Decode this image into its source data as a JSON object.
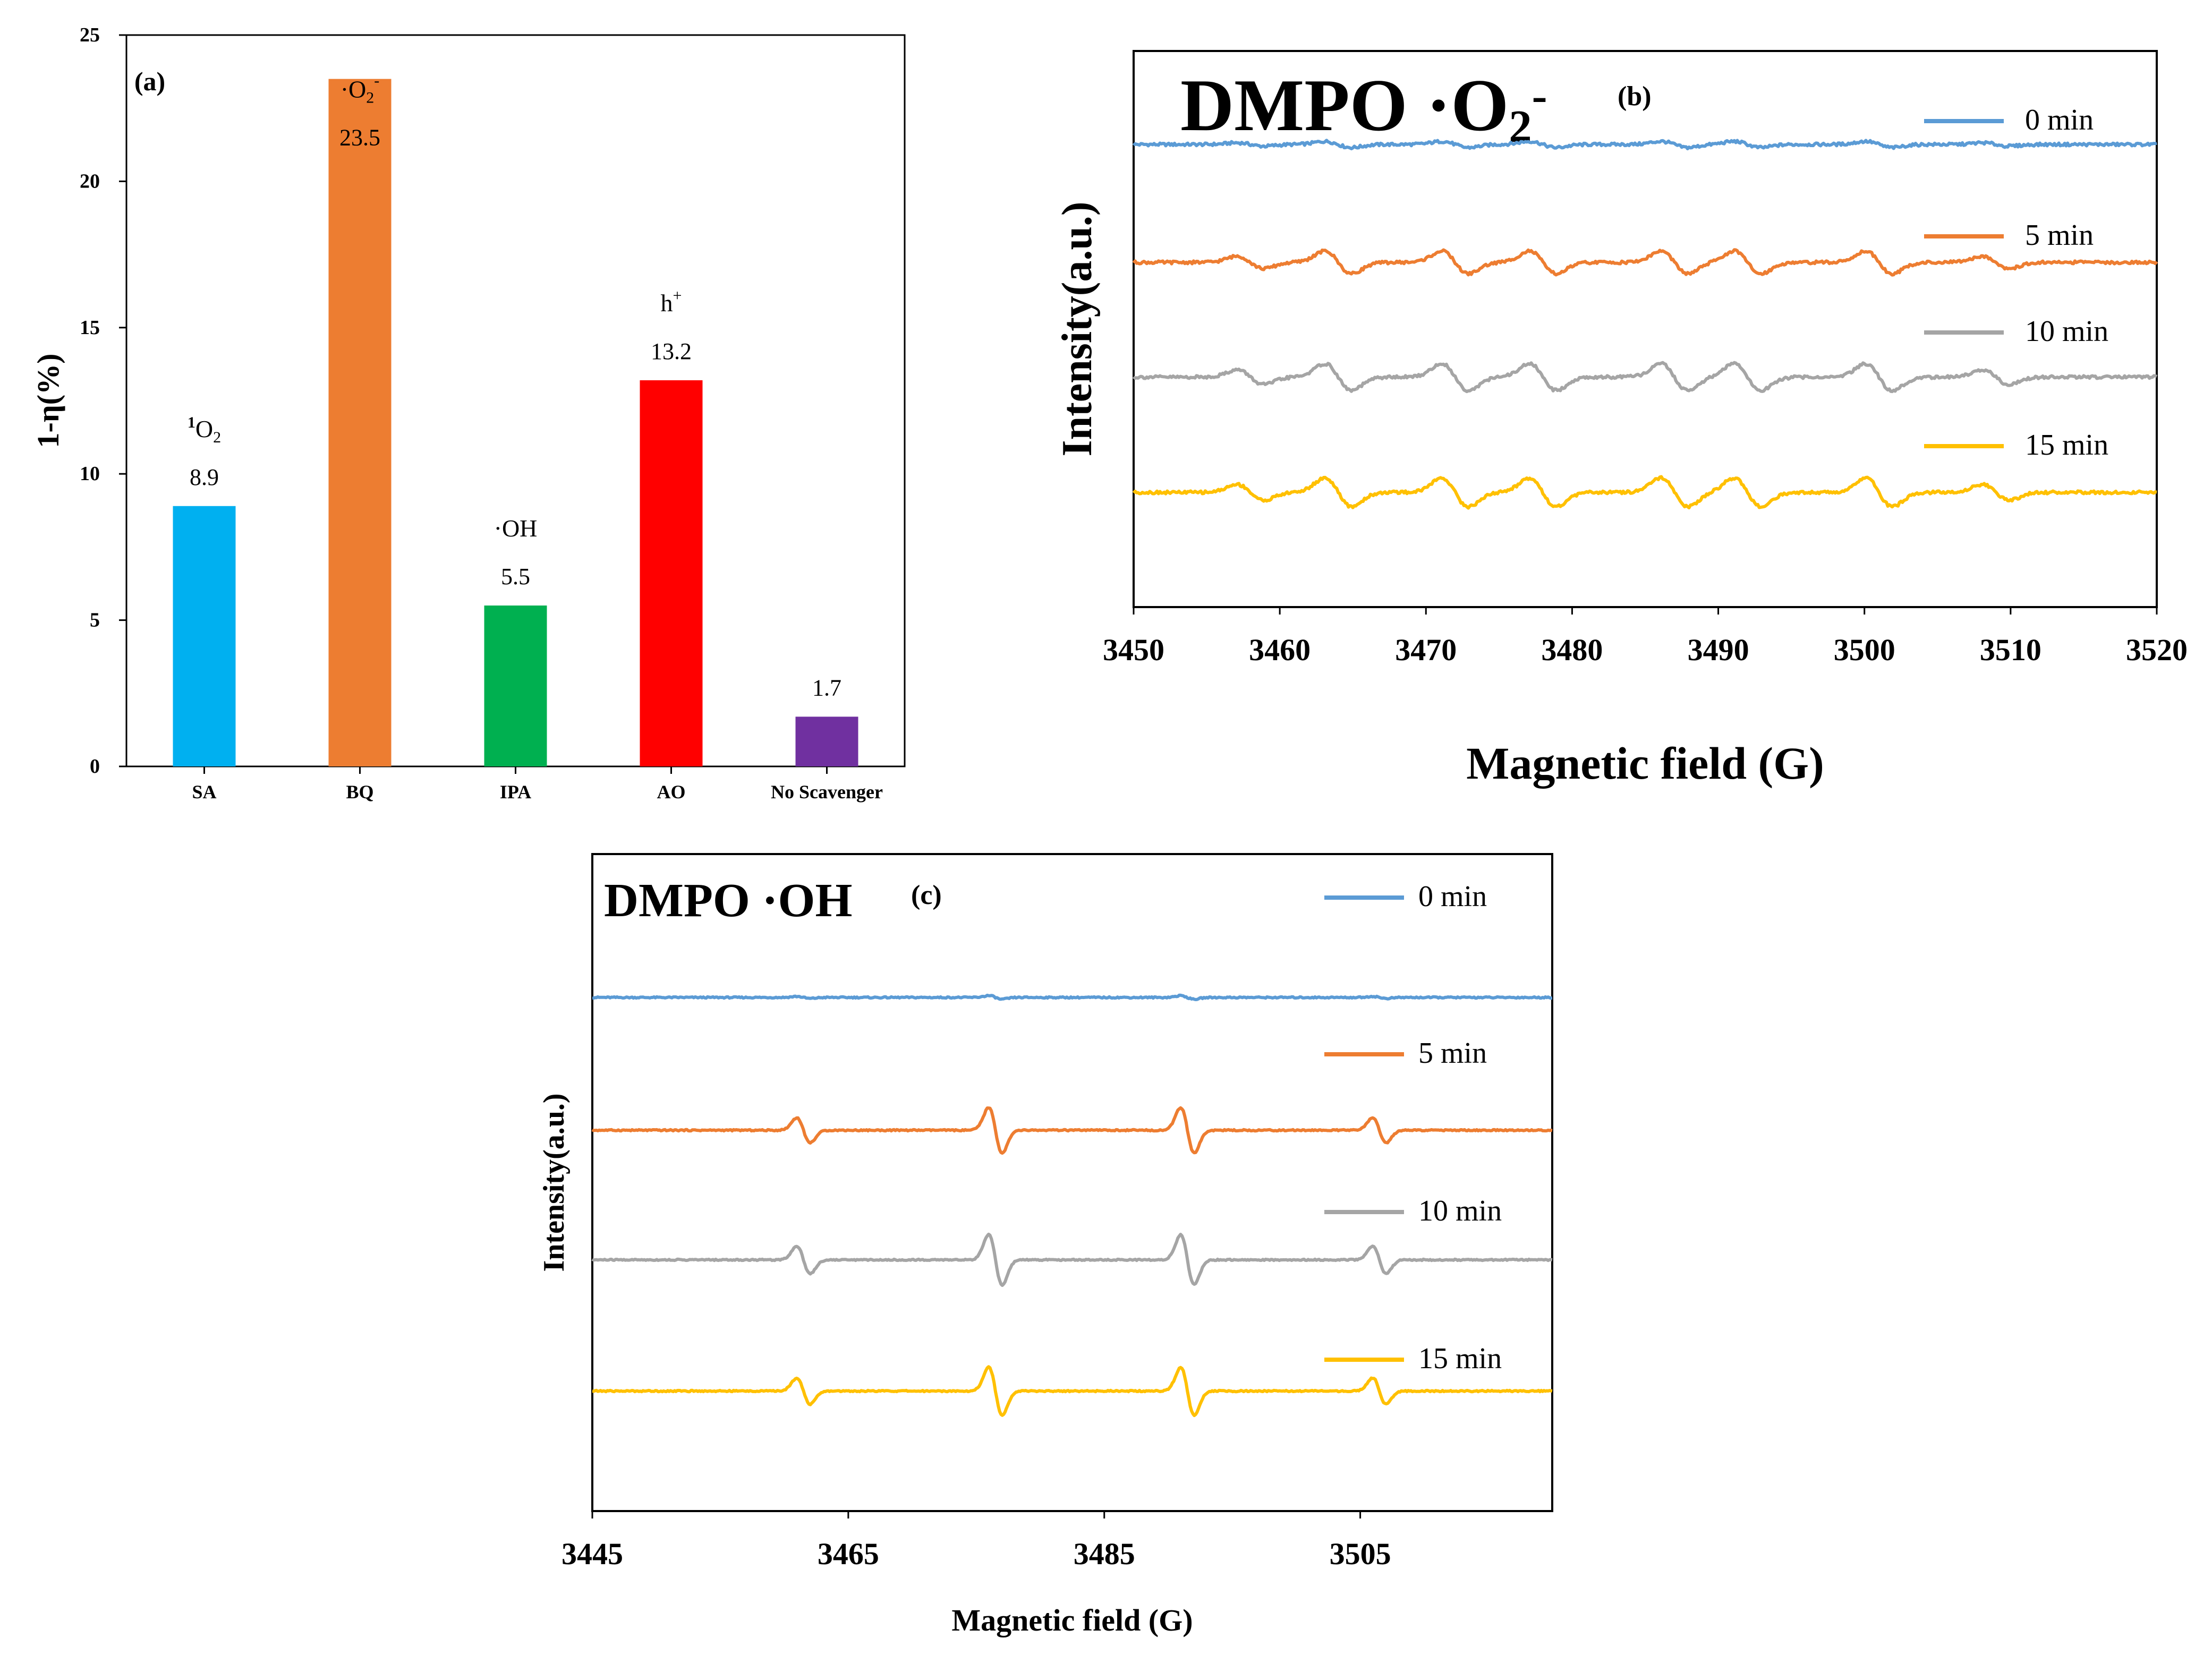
{
  "chart_data": [
    {
      "panel": "(a)",
      "type": "bar",
      "ylabel": "1-η(%)",
      "ylim": [
        0,
        25
      ],
      "yticks": [
        0,
        5,
        10,
        15,
        20,
        25
      ],
      "categories": [
        "SA",
        "BQ",
        "IPA",
        "AO",
        "No Scavenger"
      ],
      "values": [
        8.9,
        23.5,
        5.5,
        13.2,
        1.7
      ],
      "value_labels": [
        "8.9",
        "23.5",
        "5.5",
        "13.2",
        "1.7"
      ],
      "species_labels": [
        {
          "main": "O",
          "pre": "1",
          "sub": "2",
          "sup": ""
        },
        {
          "main": "O",
          "pre": "·",
          "sub": "2",
          "sup": "-"
        },
        {
          "main": "OH",
          "pre": "·",
          "sub": "",
          "sup": ""
        },
        {
          "main": "h",
          "pre": "",
          "sub": "",
          "sup": "+"
        },
        {
          "main": "",
          "pre": "",
          "sub": "",
          "sup": ""
        }
      ],
      "colors": [
        "#00b0f0",
        "#ed7d31",
        "#00b050",
        "#ff0000",
        "#7030a0"
      ],
      "grid": false
    },
    {
      "panel": "(b)",
      "type": "line",
      "title_main": "DMPO ·O",
      "title_sub": "2",
      "title_sup": "-",
      "xlabel": "Magnetic field (G)",
      "ylabel": "Intensity(a.u.)",
      "xlim": [
        3450,
        3520
      ],
      "xticks": [
        3450,
        3460,
        3470,
        3480,
        3490,
        3500,
        3510,
        3520
      ],
      "legend_position": "top-right",
      "series": [
        {
          "name": "0 min",
          "color": "#5b9bd5",
          "amplitude": 0.15
        },
        {
          "name": "5 min",
          "color": "#ed7d31",
          "amplitude": 0.55
        },
        {
          "name": "10 min",
          "color": "#a5a5a5",
          "amplitude": 0.65
        },
        {
          "name": "15 min",
          "color": "#ffc000",
          "amplitude": 0.7
        }
      ],
      "peak_positions": [
        3458,
        3464,
        3472,
        3478,
        3487,
        3492,
        3501,
        3509
      ]
    },
    {
      "panel": "(c)",
      "type": "line",
      "title_main": "DMPO ·OH",
      "xlabel": "Magnetic field (G)",
      "ylabel": "Intensity(a.u.)",
      "xlim": [
        3445,
        3520
      ],
      "xticks": [
        3445,
        3465,
        3485,
        3505
      ],
      "legend_position": "top-right",
      "series": [
        {
          "name": "0 min",
          "color": "#5b9bd5",
          "amplitude": 0.08
        },
        {
          "name": "5 min",
          "color": "#ed7d31",
          "amplitude": 1.0
        },
        {
          "name": "10 min",
          "color": "#a5a5a5",
          "amplitude": 1.1
        },
        {
          "name": "15 min",
          "color": "#ffc000",
          "amplitude": 1.05
        }
      ],
      "peak_positions": [
        3461.5,
        3476.5,
        3491.5,
        3506.5
      ]
    }
  ]
}
